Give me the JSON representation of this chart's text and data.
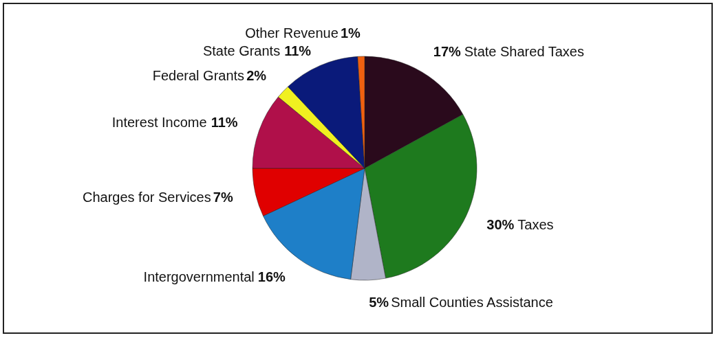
{
  "chart_data": {
    "type": "pie",
    "categories": [
      "State Shared Taxes",
      "Taxes",
      "Small Counties Assistance",
      "Intergovernmental",
      "Charges for Services",
      "Interest Income",
      "Federal Grants",
      "State Grants",
      "Other Revenue"
    ],
    "values": [
      17,
      30,
      5,
      16,
      7,
      11,
      2,
      11,
      1
    ],
    "colors": [
      "#2a0a1c",
      "#1e7a1e",
      "#b0b4c8",
      "#1e7fc8",
      "#e00000",
      "#b0104a",
      "#f0f020",
      "#0a1a7a",
      "#f06010"
    ],
    "value_labels": [
      "17%",
      "30%",
      "5%",
      "16%",
      "7%",
      "11%",
      "2%",
      "11%",
      "1%"
    ],
    "legend": false
  }
}
